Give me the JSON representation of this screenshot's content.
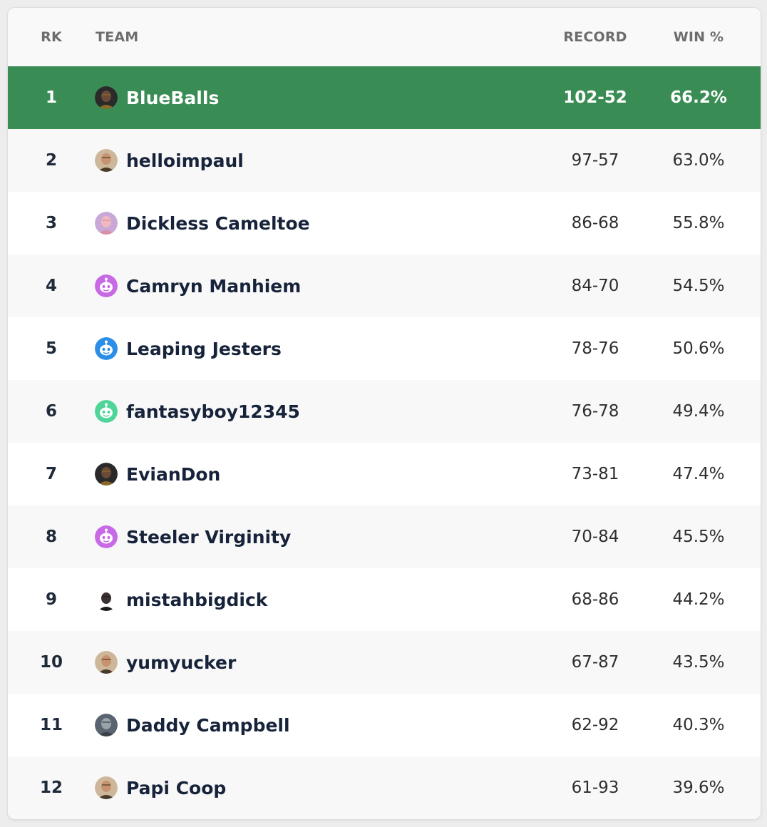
{
  "headers": {
    "rank": "RK",
    "team": "TEAM",
    "record": "RECORD",
    "win_pct": "WIN %"
  },
  "highlight_color": "#3a8c55",
  "rows": [
    {
      "rank": "1",
      "team": "BlueBalls",
      "record": "102-52",
      "win_pct": "66.2%",
      "avatar": "photo-avatar-dark",
      "highlight": true
    },
    {
      "rank": "2",
      "team": "helloimpaul",
      "record": "97-57",
      "win_pct": "63.0%",
      "avatar": "photo-avatar-face"
    },
    {
      "rank": "3",
      "team": "Dickless Cameltoe",
      "record": "86-68",
      "win_pct": "55.8%",
      "avatar": "photo-avatar-pink"
    },
    {
      "rank": "4",
      "team": "Camryn Manhiem",
      "record": "84-70",
      "win_pct": "54.5%",
      "avatar": "default-bot-avatar-purple"
    },
    {
      "rank": "5",
      "team": "Leaping Jesters",
      "record": "78-76",
      "win_pct": "50.6%",
      "avatar": "default-bot-avatar-blue"
    },
    {
      "rank": "6",
      "team": "fantasyboy12345",
      "record": "76-78",
      "win_pct": "49.4%",
      "avatar": "default-bot-avatar-green"
    },
    {
      "rank": "7",
      "team": "EvianDon",
      "record": "73-81",
      "win_pct": "47.4%",
      "avatar": "photo-avatar-dark"
    },
    {
      "rank": "8",
      "team": "Steeler Virginity",
      "record": "70-84",
      "win_pct": "45.5%",
      "avatar": "default-bot-avatar-purple"
    },
    {
      "rank": "9",
      "team": "mistahbigdick",
      "record": "68-86",
      "win_pct": "44.2%",
      "avatar": "photo-avatar-meme"
    },
    {
      "rank": "10",
      "team": "yumyucker",
      "record": "67-87",
      "win_pct": "43.5%",
      "avatar": "photo-avatar-face"
    },
    {
      "rank": "11",
      "team": "Daddy Campbell",
      "record": "62-92",
      "win_pct": "40.3%",
      "avatar": "photo-avatar-gray"
    },
    {
      "rank": "12",
      "team": "Papi Coop",
      "record": "61-93",
      "win_pct": "39.6%",
      "avatar": "photo-avatar-face"
    }
  ]
}
